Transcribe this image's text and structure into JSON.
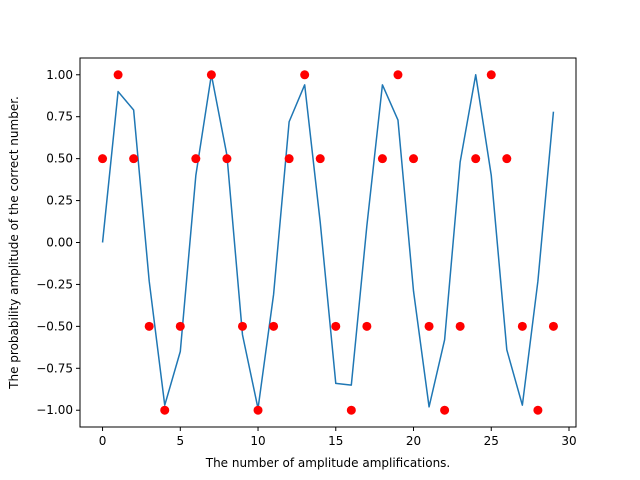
{
  "chart_data": {
    "type": "line",
    "title": "",
    "xlabel": "The number of amplitude amplifications.",
    "ylabel": "The probability amplitude of the correct number.",
    "xlim": [
      -1.45,
      30.45
    ],
    "ylim": [
      -1.1,
      1.1
    ],
    "grid": false,
    "x_ticks": [
      0,
      5,
      10,
      15,
      20,
      25,
      30
    ],
    "x_tick_labels": [
      "0",
      "5",
      "10",
      "15",
      "20",
      "25",
      "30"
    ],
    "y_ticks": [
      1.0,
      0.75,
      0.5,
      0.25,
      0.0,
      -0.25,
      -0.5,
      -0.75,
      -1.0
    ],
    "y_tick_labels": [
      "1.00",
      "0.75",
      "0.50",
      "0.25",
      "0.00",
      "−0.25",
      "−0.50",
      "−0.75",
      "−1.00"
    ],
    "series": [
      {
        "kind": "line",
        "color": "#1f77b4",
        "x": [
          0,
          1,
          2,
          3,
          4,
          5,
          6,
          7,
          8,
          9,
          10,
          11,
          12,
          13,
          14,
          15,
          16,
          17,
          18,
          19,
          20,
          21,
          22,
          23,
          24,
          25,
          26,
          27,
          28,
          29
        ],
        "y": [
          0.0,
          0.9,
          0.79,
          -0.23,
          -0.97,
          -0.65,
          0.4,
          1.0,
          0.52,
          -0.55,
          -0.99,
          -0.31,
          0.72,
          0.94,
          0.12,
          -0.84,
          -0.85,
          0.1,
          0.94,
          0.73,
          -0.29,
          -0.98,
          -0.58,
          0.48,
          1.0,
          0.4,
          -0.64,
          -0.97,
          -0.23,
          0.78
        ]
      },
      {
        "kind": "scatter",
        "color": "#ff0000",
        "x": [
          0,
          1,
          2,
          3,
          4,
          5,
          6,
          7,
          8,
          9,
          10,
          11,
          12,
          13,
          14,
          15,
          16,
          17,
          18,
          19,
          20,
          21,
          22,
          23,
          24,
          25,
          26,
          27,
          28,
          29
        ],
        "y": [
          0.5,
          1.0,
          0.5,
          -0.5,
          -1.0,
          -0.5,
          0.5,
          1.0,
          0.5,
          -0.5,
          -1.0,
          -0.5,
          0.5,
          1.0,
          0.5,
          -0.5,
          -1.0,
          -0.5,
          0.5,
          1.0,
          0.5,
          -0.5,
          -1.0,
          -0.5,
          0.5,
          1.0,
          0.5,
          -0.5,
          -1.0,
          -0.5
        ]
      }
    ]
  }
}
